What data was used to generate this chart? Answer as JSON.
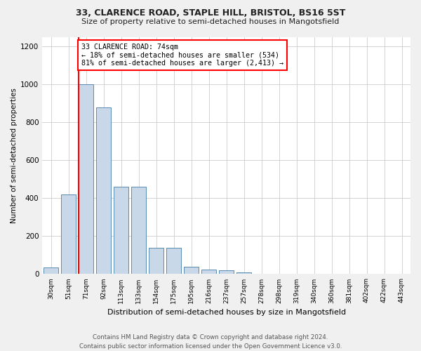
{
  "title1": "33, CLARENCE ROAD, STAPLE HILL, BRISTOL, BS16 5ST",
  "title2": "Size of property relative to semi-detached houses in Mangotsfield",
  "xlabel": "Distribution of semi-detached houses by size in Mangotsfield",
  "ylabel": "Number of semi-detached properties",
  "bin_labels": [
    "30sqm",
    "51sqm",
    "71sqm",
    "92sqm",
    "113sqm",
    "133sqm",
    "154sqm",
    "175sqm",
    "195sqm",
    "216sqm",
    "237sqm",
    "257sqm",
    "278sqm",
    "298sqm",
    "319sqm",
    "340sqm",
    "360sqm",
    "381sqm",
    "402sqm",
    "422sqm",
    "443sqm"
  ],
  "bar_heights": [
    35,
    420,
    1000,
    880,
    460,
    460,
    140,
    140,
    40,
    25,
    20,
    10,
    0,
    0,
    0,
    0,
    0,
    0,
    0,
    0,
    0
  ],
  "bar_color": "#c8d8e8",
  "bar_edge_color": "#5a8ab0",
  "property_line_index": 2,
  "annotation_text": "33 CLARENCE ROAD: 74sqm\n← 18% of semi-detached houses are smaller (534)\n81% of semi-detached houses are larger (2,413) →",
  "annotation_box_color": "white",
  "annotation_box_edge_color": "red",
  "vline_color": "red",
  "ylim": [
    0,
    1250
  ],
  "yticks": [
    0,
    200,
    400,
    600,
    800,
    1000,
    1200
  ],
  "footer_text": "Contains HM Land Registry data © Crown copyright and database right 2024.\nContains public sector information licensed under the Open Government Licence v3.0.",
  "bg_color": "#f0f0f0",
  "plot_bg_color": "white",
  "grid_color": "#cccccc"
}
